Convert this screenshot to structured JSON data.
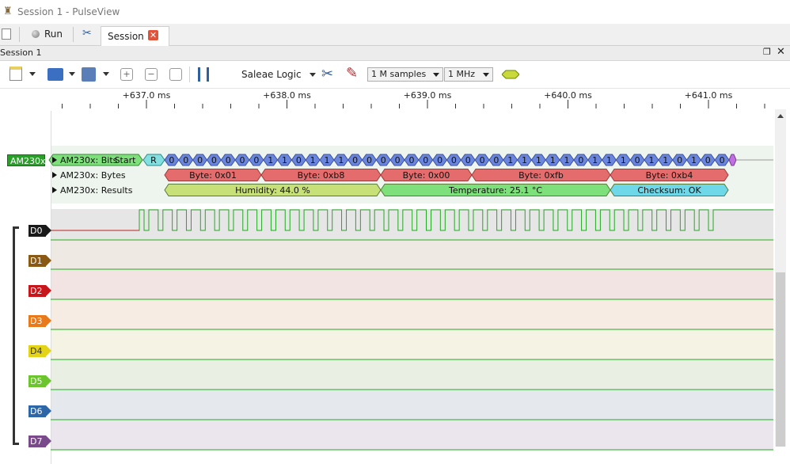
{
  "window": {
    "title": "Session 1 - PulseView"
  },
  "tabbar": {
    "run_label": "Run",
    "session_tab_label": "Session 1"
  },
  "session_header": {
    "label": "Session 1"
  },
  "toolbar": {
    "device": "Saleae Logic",
    "samples": "1 M samples",
    "samplerate": "1 MHz"
  },
  "ruler": {
    "ticks": [
      "+637.0 ms",
      "+638.0 ms",
      "+639.0 ms",
      "+640.0 ms",
      "+641.0 ms"
    ]
  },
  "decoder": {
    "badge": "AM230x",
    "rows": [
      {
        "label": "AM230x: Bits",
        "start_label": "Start"
      },
      {
        "label": "AM230x: Bytes"
      },
      {
        "label": "AM230x: Results"
      }
    ],
    "response_label": "R",
    "bits": [
      "0",
      "0",
      "0",
      "0",
      "0",
      "0",
      "0",
      "1",
      "1",
      "0",
      "1",
      "1",
      "1",
      "0",
      "0",
      "0",
      "0",
      "0",
      "0",
      "0",
      "0",
      "0",
      "0",
      "0",
      "1",
      "1",
      "1",
      "1",
      "1",
      "0",
      "1",
      "1",
      "1",
      "0",
      "1",
      "1",
      "0",
      "1",
      "0",
      "0"
    ],
    "bytes": [
      "Byte: 0x01",
      "Byte: 0xb8",
      "Byte: 0x00",
      "Byte: 0xfb",
      "Byte: 0xb4"
    ],
    "results": [
      "Humidity: 44.0 %",
      "Temperature: 25.1 °C",
      "Checksum: OK"
    ]
  },
  "channels": [
    {
      "name": "D0",
      "color": "#1a1a1a"
    },
    {
      "name": "D1",
      "color": "#8a5a14"
    },
    {
      "name": "D2",
      "color": "#c8161d"
    },
    {
      "name": "D3",
      "color": "#e87a1c"
    },
    {
      "name": "D4",
      "color": "#e3d419"
    },
    {
      "name": "D5",
      "color": "#6cc42e"
    },
    {
      "name": "D6",
      "color": "#2e67a8"
    },
    {
      "name": "D7",
      "color": "#7a4b8b"
    }
  ],
  "colors": {
    "bits_fill": "#6a86de",
    "bytes_fill": "#e56c6c",
    "humidity_fill": "#c8e078",
    "temperature_fill": "#7ee07a",
    "checksum_fill": "#6ed8e8",
    "start_fill": "#7ee07a",
    "response_fill": "#84e0e0",
    "trace_green": "#22aa22",
    "trace_red": "#bb2222"
  }
}
